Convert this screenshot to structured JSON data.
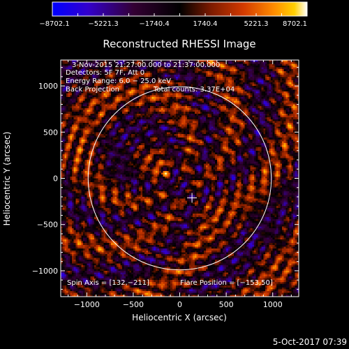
{
  "chart_data": {
    "type": "heatmap",
    "title": "Reconstructed RHESSI Image",
    "xlabel": "Heliocentric X (arcsec)",
    "ylabel": "Heliocentric Y (arcsec)",
    "xlim": [
      -1280,
      1280
    ],
    "ylim": [
      -1280,
      1280
    ],
    "xticks": [
      -1000,
      -500,
      0,
      500,
      1000
    ],
    "yticks": [
      -1000,
      -500,
      0,
      500,
      1000
    ],
    "xtick_labels": [
      "−1000",
      "−500",
      "0",
      "500",
      "1000"
    ],
    "ytick_labels": [
      "−1000",
      "−500",
      "0",
      "500",
      "1000"
    ],
    "colorbar": {
      "min": -8702.1,
      "max": 8702.1,
      "tick_labels": [
        "−8702.1",
        "−5221.3",
        "−1740.4",
        "1740.4",
        "5221.3",
        "8702.1"
      ],
      "colors": [
        "#0000ff",
        "#3300c8",
        "#330033",
        "#000000",
        "#7a1a00",
        "#d23a00",
        "#ff8c00",
        "#ffd000",
        "#ffffff"
      ]
    },
    "annotations": {
      "date_range": "3-Nov-2015 21:27:00.000 to 21:37:00.000",
      "detectors": "Detectors: 5F 7F, Att 0",
      "energy_range": "Energy Range: 6.0 − 25.0 keV",
      "method": "Back Projection",
      "total_counts": "Total counts: 3.37E+04",
      "spin_axis": "Spin Axis = [132,−211]",
      "flare_position": "Flare Position = [−153,50]"
    },
    "spin_axis": [
      132,
      -211
    ],
    "flare_position": [
      -153,
      50
    ],
    "solar_limb_radius": 985
  },
  "footer": {
    "timestamp": "5-Oct-2017 07:39"
  }
}
